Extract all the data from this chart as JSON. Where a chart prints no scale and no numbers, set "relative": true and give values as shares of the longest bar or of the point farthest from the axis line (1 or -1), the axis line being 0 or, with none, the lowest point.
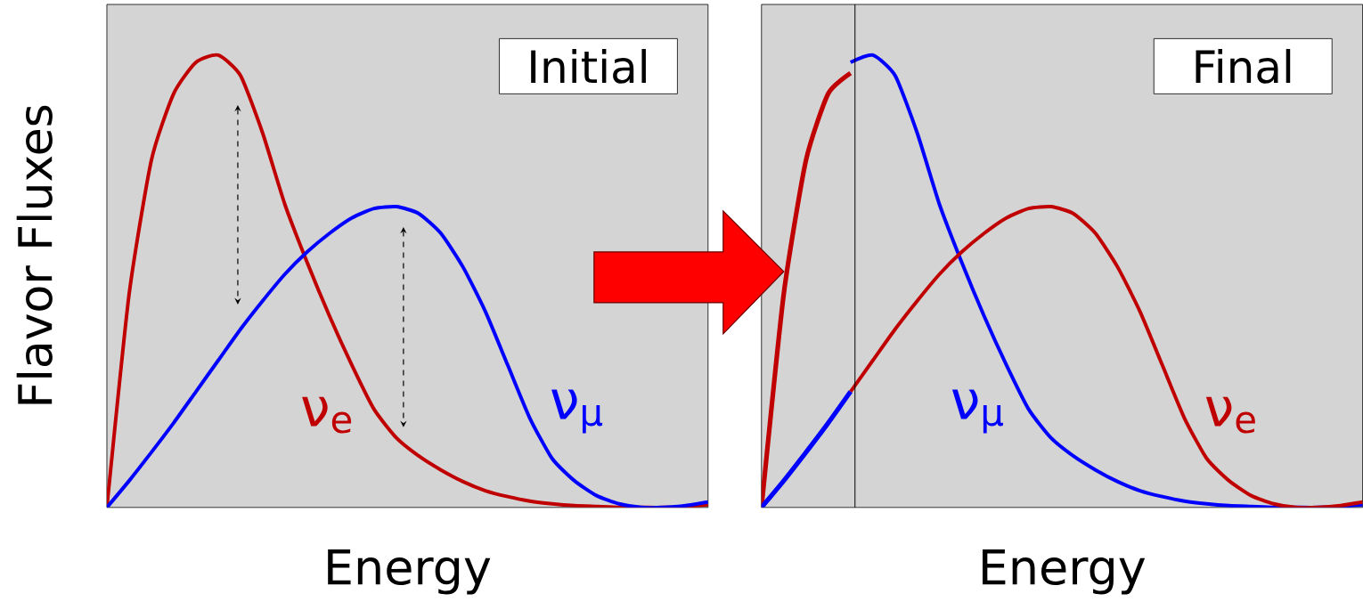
{
  "chart_data": [
    {
      "type": "line",
      "relative": true,
      "xlabel": "Energy",
      "ylabel": "Flavor Fluxes",
      "annotations": [
        "Initial"
      ],
      "categories": [
        null,
        null,
        null,
        null,
        null,
        null,
        null,
        null,
        null,
        null,
        null,
        null,
        null,
        null,
        null,
        null,
        null,
        null,
        null,
        null,
        null,
        null,
        null,
        null,
        null,
        null,
        null,
        null
      ],
      "series": [
        {
          "name": "ν$_{e}$",
          "color": "#c00000",
          "values": [
            0,
            0.472,
            0.768,
            0.915,
            0.984,
            1,
            0.955,
            0.827,
            0.669,
            0.541,
            0.423,
            0.315,
            0.217,
            0.154,
            0.114,
            0.083,
            0.057,
            0.037,
            0.024,
            0.014,
            0.008,
            0.004,
            0.002,
            0,
            0,
            0,
            0.002,
            0.006
          ]
        },
        {
          "name": "ν$_{μ}$",
          "color": "#0000ff",
          "values": [
            0,
            0.059,
            0.122,
            0.187,
            0.256,
            0.325,
            0.394,
            0.457,
            0.516,
            0.565,
            0.606,
            0.64,
            0.661,
            0.665,
            0.65,
            0.606,
            0.531,
            0.433,
            0.315,
            0.197,
            0.108,
            0.059,
            0.026,
            0.008,
            0,
            0,
            0.004,
            0.012
          ]
        }
      ]
    },
    {
      "type": "line",
      "relative": true,
      "xlabel": "Energy",
      "annotations": [
        "Final"
      ],
      "categories": [
        null,
        null,
        null,
        null,
        null,
        null,
        null,
        null,
        null,
        null,
        null,
        null,
        null,
        null,
        null,
        null,
        null,
        null,
        null,
        null,
        null,
        null,
        null,
        null,
        null,
        null,
        null,
        null
      ],
      "series": [
        {
          "name": "ν$_{μ}$",
          "color": "#0000ff",
          "values": [
            null,
            null,
            null,
            null,
            0.984,
            1,
            0.955,
            0.827,
            0.669,
            0.541,
            0.423,
            0.315,
            0.217,
            0.154,
            0.114,
            0.083,
            0.057,
            0.037,
            0.024,
            0.014,
            0.008,
            0.004,
            0.002,
            0,
            0,
            0,
            0.002,
            0.006
          ]
        },
        {
          "name": "ν$_{e}$",
          "color": "#c00000",
          "values": [
            null,
            null,
            null,
            null,
            0.256,
            0.325,
            0.394,
            0.457,
            0.516,
            0.565,
            0.606,
            0.64,
            0.661,
            0.665,
            0.65,
            0.606,
            0.531,
            0.433,
            0.315,
            0.197,
            0.108,
            0.059,
            0.026,
            0.008,
            0,
            0,
            0.004,
            0.012
          ]
        },
        {
          "color": "#c00000",
          "values": [
            0,
            0.472,
            0.768,
            0.915,
            0.96,
            null,
            null,
            null,
            null,
            null,
            null,
            null,
            null,
            null,
            null,
            null,
            null,
            null,
            null,
            null,
            null,
            null,
            null,
            null,
            null,
            null,
            null,
            null
          ]
        },
        {
          "color": "#0000ff",
          "values": [
            0,
            0.059,
            0.122,
            0.187,
            0.256,
            null,
            null,
            null,
            null,
            null,
            null,
            null,
            null,
            null,
            null,
            null,
            null,
            null,
            null,
            null,
            null,
            null,
            null,
            null,
            null,
            null,
            null,
            null
          ]
        }
      ]
    }
  ]
}
